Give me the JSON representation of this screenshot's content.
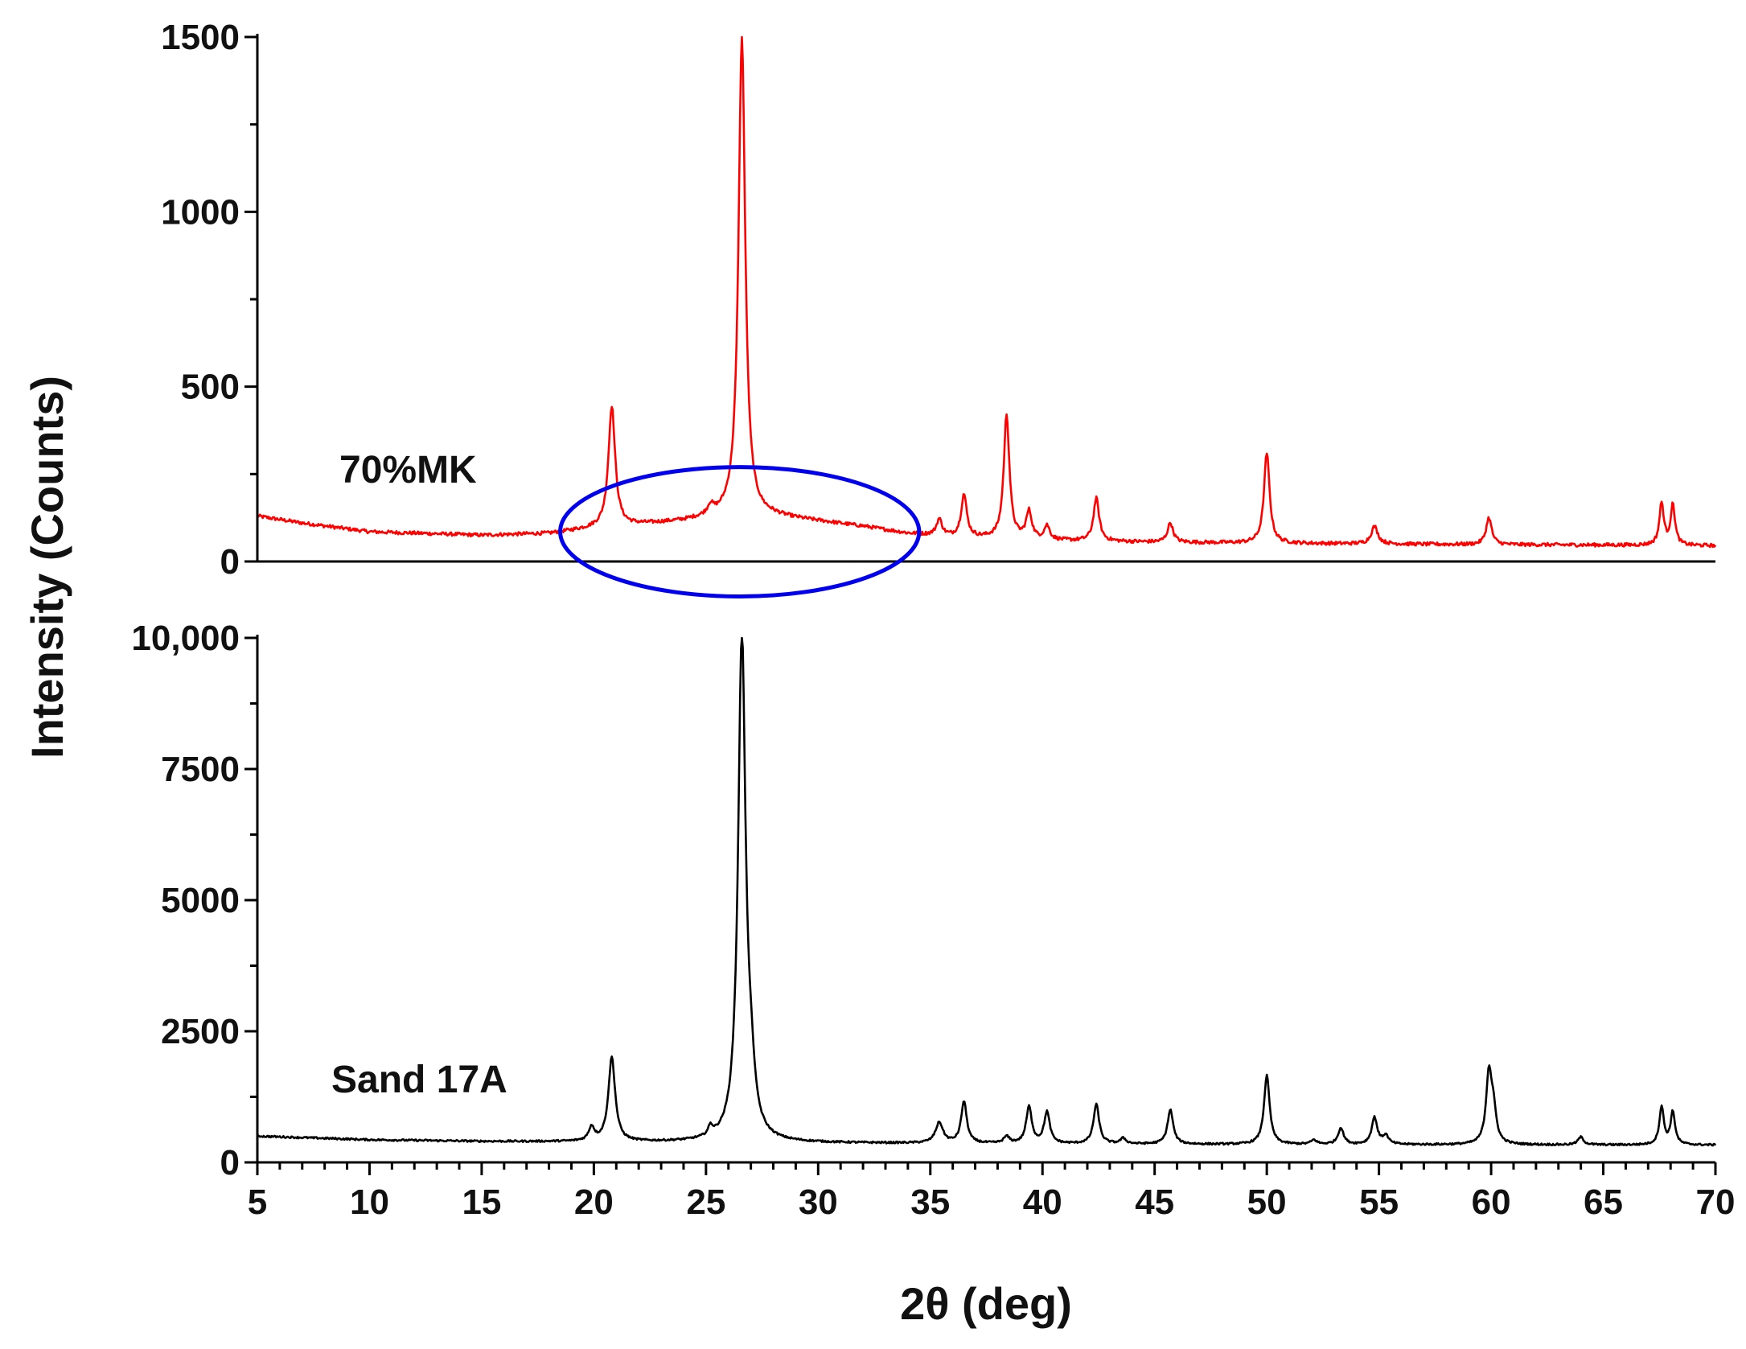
{
  "chart_data": [
    {
      "type": "line",
      "panel": "top",
      "series_label": "70%MK",
      "color": "#ff0000",
      "xlim": [
        5,
        70
      ],
      "ylim": [
        0,
        1500
      ],
      "ytick_values": [
        0,
        500,
        1000,
        1500
      ],
      "ytick_labels": [
        "0",
        "500",
        "1000",
        "1500"
      ],
      "baseline_points": [
        [
          5,
          130
        ],
        [
          7,
          110
        ],
        [
          10,
          85
        ],
        [
          15,
          75
        ],
        [
          18,
          80
        ],
        [
          20,
          95
        ],
        [
          22,
          105
        ],
        [
          24,
          115
        ],
        [
          26,
          130
        ],
        [
          28,
          128
        ],
        [
          30,
          115
        ],
        [
          32,
          100
        ],
        [
          34,
          80
        ],
        [
          36,
          70
        ],
        [
          40,
          60
        ],
        [
          45,
          55
        ],
        [
          50,
          52
        ],
        [
          55,
          50
        ],
        [
          60,
          48
        ],
        [
          65,
          47
        ],
        [
          70,
          45
        ]
      ],
      "peaks": [
        {
          "x": 20.8,
          "height": 445,
          "width": 0.18
        },
        {
          "x": 25.2,
          "height": 150,
          "width": 0.15
        },
        {
          "x": 26.6,
          "height": 1500,
          "width": 0.18
        },
        {
          "x": 35.4,
          "height": 120,
          "width": 0.15
        },
        {
          "x": 36.5,
          "height": 190,
          "width": 0.15
        },
        {
          "x": 38.4,
          "height": 420,
          "width": 0.15
        },
        {
          "x": 39.4,
          "height": 140,
          "width": 0.15
        },
        {
          "x": 40.2,
          "height": 100,
          "width": 0.15
        },
        {
          "x": 42.4,
          "height": 180,
          "width": 0.15
        },
        {
          "x": 45.7,
          "height": 110,
          "width": 0.15
        },
        {
          "x": 50.0,
          "height": 310,
          "width": 0.15
        },
        {
          "x": 54.8,
          "height": 100,
          "width": 0.18
        },
        {
          "x": 59.9,
          "height": 125,
          "width": 0.15
        },
        {
          "x": 67.6,
          "height": 165,
          "width": 0.12
        },
        {
          "x": 68.1,
          "height": 160,
          "width": 0.12
        }
      ],
      "annotation": {
        "shape": "ellipse",
        "color": "#0000ee",
        "x_range": [
          18.5,
          34.5
        ],
        "y_range": [
          -100,
          270
        ]
      }
    },
    {
      "type": "line",
      "panel": "bottom",
      "series_label": "Sand 17A",
      "color": "#000000",
      "xlim": [
        5,
        70
      ],
      "ylim": [
        0,
        10000
      ],
      "ytick_values": [
        0,
        2500,
        5000,
        7500,
        10000
      ],
      "ytick_labels": [
        "0",
        "2500",
        "5000",
        "7500",
        "10,000"
      ],
      "baseline_points": [
        [
          5,
          500
        ],
        [
          10,
          430
        ],
        [
          15,
          400
        ],
        [
          20,
          390
        ],
        [
          25,
          380
        ],
        [
          30,
          370
        ],
        [
          35,
          360
        ],
        [
          40,
          350
        ],
        [
          50,
          340
        ],
        [
          60,
          335
        ],
        [
          70,
          330
        ]
      ],
      "peaks": [
        {
          "x": 19.9,
          "height": 650,
          "width": 0.15
        },
        {
          "x": 20.8,
          "height": 2000,
          "width": 0.18
        },
        {
          "x": 25.2,
          "height": 550,
          "width": 0.12
        },
        {
          "x": 26.6,
          "height": 10000,
          "width": 0.2
        },
        {
          "x": 27.0,
          "height": 1200,
          "width": 0.2
        },
        {
          "x": 35.4,
          "height": 750,
          "width": 0.2
        },
        {
          "x": 36.5,
          "height": 1150,
          "width": 0.15
        },
        {
          "x": 38.4,
          "height": 480,
          "width": 0.15
        },
        {
          "x": 39.4,
          "height": 1050,
          "width": 0.15
        },
        {
          "x": 40.2,
          "height": 950,
          "width": 0.15
        },
        {
          "x": 42.4,
          "height": 1100,
          "width": 0.15
        },
        {
          "x": 43.6,
          "height": 450,
          "width": 0.15
        },
        {
          "x": 45.7,
          "height": 1000,
          "width": 0.15
        },
        {
          "x": 50.0,
          "height": 1650,
          "width": 0.15
        },
        {
          "x": 52.1,
          "height": 420,
          "width": 0.15
        },
        {
          "x": 53.3,
          "height": 650,
          "width": 0.15
        },
        {
          "x": 54.8,
          "height": 850,
          "width": 0.15
        },
        {
          "x": 55.3,
          "height": 500,
          "width": 0.15
        },
        {
          "x": 59.9,
          "height": 1650,
          "width": 0.15
        },
        {
          "x": 60.1,
          "height": 900,
          "width": 0.15
        },
        {
          "x": 64.0,
          "height": 480,
          "width": 0.15
        },
        {
          "x": 67.6,
          "height": 1050,
          "width": 0.12
        },
        {
          "x": 68.1,
          "height": 950,
          "width": 0.12
        }
      ]
    }
  ],
  "axes": {
    "xlabel": "2θ (deg)",
    "ylabel": "Intensity (Counts)",
    "xtick_values": [
      5,
      10,
      15,
      20,
      25,
      30,
      35,
      40,
      45,
      50,
      55,
      60,
      65,
      70
    ],
    "xtick_labels": [
      "5",
      "10",
      "15",
      "20",
      "25",
      "30",
      "35",
      "40",
      "45",
      "50",
      "55",
      "60",
      "65",
      "70"
    ]
  }
}
